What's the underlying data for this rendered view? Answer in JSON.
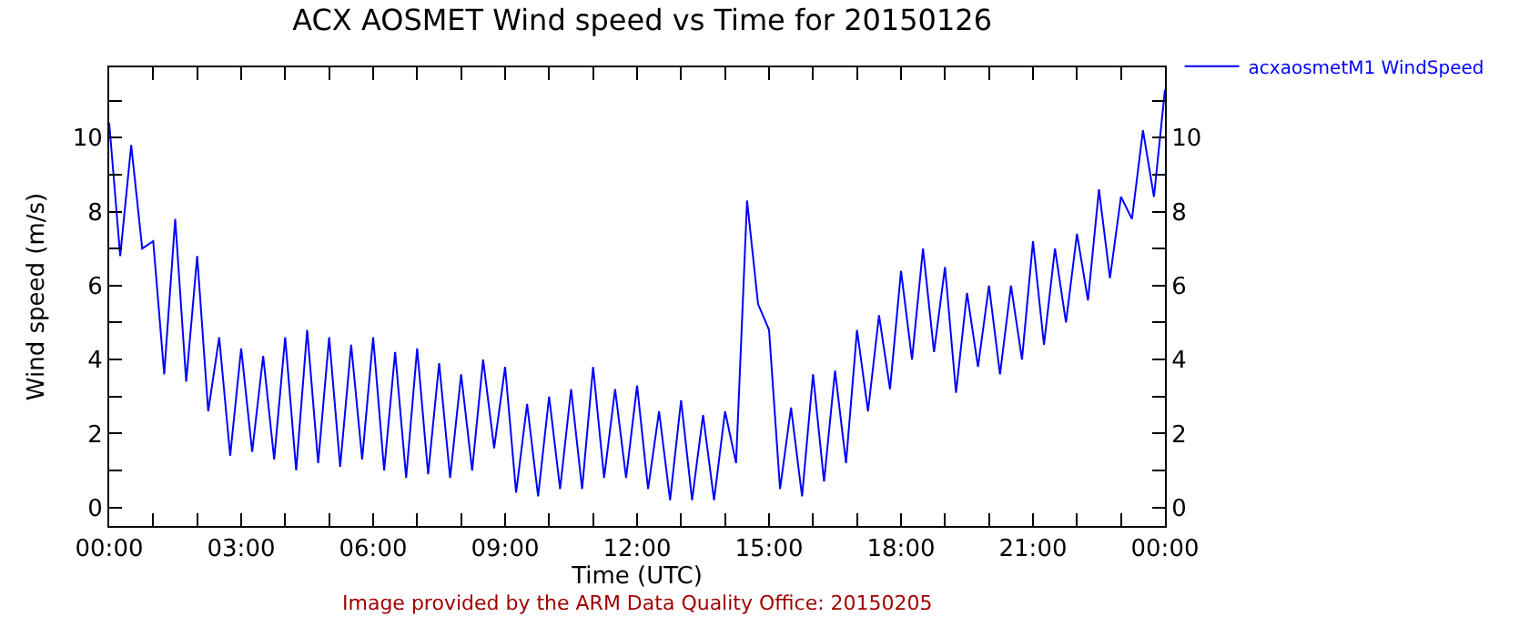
{
  "chart_data": {
    "type": "line",
    "title": "ACX AOSMET Wind speed vs Time for 20150126",
    "xlabel": "Time (UTC)",
    "ylabel": "Wind speed (m/s)",
    "annotations": [
      "Image provided by the ARM Data Quality Office: 20150205"
    ],
    "x": [
      0,
      0.25,
      0.5,
      0.75,
      1,
      1.25,
      1.5,
      1.75,
      2,
      2.25,
      2.5,
      2.75,
      3,
      3.25,
      3.5,
      3.75,
      4,
      4.25,
      4.5,
      4.75,
      5,
      5.25,
      5.5,
      5.75,
      6,
      6.25,
      6.5,
      6.75,
      7,
      7.25,
      7.5,
      7.75,
      8,
      8.25,
      8.5,
      8.75,
      9,
      9.25,
      9.5,
      9.75,
      10,
      10.25,
      10.5,
      10.75,
      11,
      11.25,
      11.5,
      11.75,
      12,
      12.25,
      12.5,
      12.75,
      13,
      13.25,
      13.5,
      13.75,
      14,
      14.25,
      14.5,
      14.75,
      15,
      15.25,
      15.5,
      15.75,
      16,
      16.25,
      16.5,
      16.75,
      17,
      17.25,
      17.5,
      17.75,
      18,
      18.25,
      18.5,
      18.75,
      19,
      19.25,
      19.5,
      19.75,
      20,
      20.25,
      20.5,
      20.75,
      21,
      21.25,
      21.5,
      21.75,
      22,
      22.25,
      22.5,
      22.75,
      23,
      23.25,
      23.5,
      23.75,
      24
    ],
    "series": [
      {
        "name": "acxaosmetM1 WindSpeed",
        "color": "#0000ff",
        "values": [
          10.4,
          6.8,
          9.8,
          7.0,
          7.2,
          3.6,
          7.8,
          3.4,
          6.8,
          2.6,
          4.6,
          1.4,
          4.3,
          1.5,
          4.1,
          1.3,
          4.6,
          1.0,
          4.8,
          1.2,
          4.6,
          1.1,
          4.4,
          1.3,
          4.6,
          1.0,
          4.2,
          0.8,
          4.3,
          0.9,
          3.9,
          0.8,
          3.6,
          1.0,
          4.0,
          1.6,
          3.8,
          0.4,
          2.8,
          0.3,
          3.0,
          0.5,
          3.2,
          0.5,
          3.8,
          0.8,
          3.2,
          0.8,
          3.3,
          0.5,
          2.6,
          0.2,
          2.9,
          0.2,
          2.5,
          0.2,
          2.6,
          1.2,
          8.3,
          5.5,
          4.8,
          0.5,
          2.7,
          0.3,
          3.6,
          0.7,
          3.7,
          1.2,
          4.8,
          2.6,
          5.2,
          3.2,
          6.4,
          4.0,
          7.0,
          4.2,
          6.5,
          3.1,
          5.8,
          3.8,
          6.0,
          3.6,
          6.0,
          4.0,
          7.2,
          4.4,
          7.0,
          5.0,
          7.4,
          5.6,
          8.6,
          6.2,
          8.4,
          7.8,
          10.2,
          8.4,
          11.3
        ]
      }
    ],
    "xlim": [
      0,
      24
    ],
    "xticks": [
      {
        "value": 0,
        "label": "00:00"
      },
      {
        "value": 1,
        "label": null
      },
      {
        "value": 2,
        "label": null
      },
      {
        "value": 3,
        "label": "03:00"
      },
      {
        "value": 4,
        "label": null
      },
      {
        "value": 5,
        "label": null
      },
      {
        "value": 6,
        "label": "06:00"
      },
      {
        "value": 7,
        "label": null
      },
      {
        "value": 8,
        "label": null
      },
      {
        "value": 9,
        "label": "09:00"
      },
      {
        "value": 10,
        "label": null
      },
      {
        "value": 11,
        "label": null
      },
      {
        "value": 12,
        "label": "12:00"
      },
      {
        "value": 13,
        "label": null
      },
      {
        "value": 14,
        "label": null
      },
      {
        "value": 15,
        "label": "15:00"
      },
      {
        "value": 16,
        "label": null
      },
      {
        "value": 17,
        "label": null
      },
      {
        "value": 18,
        "label": "18:00"
      },
      {
        "value": 19,
        "label": null
      },
      {
        "value": 20,
        "label": null
      },
      {
        "value": 21,
        "label": "21:00"
      },
      {
        "value": 22,
        "label": null
      },
      {
        "value": 23,
        "label": null
      },
      {
        "value": 24,
        "label": "00:00"
      }
    ],
    "ylim": [
      -0.5,
      11.9
    ],
    "yticks": [
      0,
      {
        "value": 1,
        "label": null
      },
      2,
      {
        "value": 3,
        "label": null
      },
      4,
      {
        "value": 5,
        "label": null
      },
      6,
      {
        "value": 7,
        "label": null
      },
      8,
      {
        "value": 9,
        "label": null
      },
      10,
      {
        "value": 11,
        "label": null
      }
    ],
    "y2lim": [
      -0.5,
      11.9
    ],
    "y2ticks": [
      0,
      {
        "value": 1,
        "label": null
      },
      2,
      {
        "value": 3,
        "label": null
      },
      4,
      {
        "value": 5,
        "label": null
      },
      6,
      {
        "value": 7,
        "label": null
      },
      8,
      {
        "value": 9,
        "label": null
      },
      10,
      {
        "value": 11,
        "label": null
      }
    ],
    "grid": false,
    "legend": "top right",
    "marker": "none",
    "line_style": "solid"
  }
}
